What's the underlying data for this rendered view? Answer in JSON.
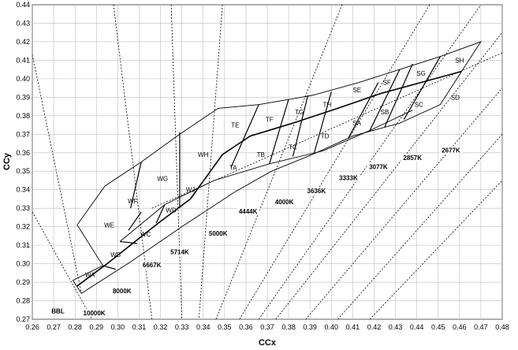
{
  "chart_data": {
    "type": "scatter",
    "xlabel": "CCx",
    "ylabel": "CCy",
    "xlim": [
      0.26,
      0.48
    ],
    "ylim": [
      0.27,
      0.44
    ],
    "xticks": [
      "0.26",
      "0.27",
      "0.28",
      "0.29",
      "0.30",
      "0.31",
      "0.32",
      "0.33",
      "0.34",
      "0.35",
      "0.36",
      "0.37",
      "0.38",
      "0.39",
      "0.40",
      "0.41",
      "0.42",
      "0.43",
      "0.44",
      "0.45",
      "0.46",
      "0.47",
      "0.48"
    ],
    "yticks": [
      "0.27",
      "0.28",
      "0.29",
      "0.30",
      "0.31",
      "0.32",
      "0.33",
      "0.34",
      "0.35",
      "0.36",
      "0.37",
      "0.38",
      "0.39",
      "0.40",
      "0.41",
      "0.42",
      "0.43",
      "0.44"
    ],
    "outer_boundary": [
      [
        0.279,
        0.291
      ],
      [
        0.283,
        0.284
      ],
      [
        0.306,
        0.301
      ],
      [
        0.33,
        0.32
      ],
      [
        0.355,
        0.339
      ],
      [
        0.372,
        0.35
      ],
      [
        0.391,
        0.359
      ],
      [
        0.41,
        0.369
      ],
      [
        0.432,
        0.376
      ],
      [
        0.451,
        0.386
      ],
      [
        0.461,
        0.404
      ],
      [
        0.47,
        0.42
      ],
      [
        0.451,
        0.412
      ],
      [
        0.432,
        0.405
      ],
      [
        0.413,
        0.398
      ],
      [
        0.391,
        0.391
      ],
      [
        0.366,
        0.386
      ],
      [
        0.347,
        0.384
      ],
      [
        0.329,
        0.37
      ],
      [
        0.311,
        0.355
      ],
      [
        0.294,
        0.342
      ],
      [
        0.281,
        0.321
      ],
      [
        0.293,
        0.299
      ]
    ],
    "center_line": [
      [
        0.281,
        0.288
      ],
      [
        0.295,
        0.3
      ],
      [
        0.307,
        0.311
      ],
      [
        0.319,
        0.322
      ],
      [
        0.334,
        0.335
      ],
      [
        0.349,
        0.359
      ],
      [
        0.362,
        0.369
      ],
      [
        0.382,
        0.376
      ],
      [
        0.403,
        0.384
      ],
      [
        0.423,
        0.392
      ],
      [
        0.442,
        0.398
      ],
      [
        0.461,
        0.404
      ]
    ],
    "segment_lines": [
      [
        [
          0.293,
          0.299
        ],
        [
          0.299,
          0.297
        ]
      ],
      [
        [
          0.301,
          0.312
        ],
        [
          0.309,
          0.311
        ]
      ],
      [
        [
          0.305,
          0.318
        ],
        [
          0.311,
          0.328
        ]
      ],
      [
        [
          0.306,
          0.33
        ],
        [
          0.311,
          0.355
        ]
      ],
      [
        [
          0.318,
          0.322
        ],
        [
          0.322,
          0.332
        ]
      ],
      [
        [
          0.329,
          0.33
        ],
        [
          0.329,
          0.371
        ]
      ],
      [
        [
          0.353,
          0.352
        ],
        [
          0.366,
          0.386
        ]
      ],
      [
        [
          0.371,
          0.354
        ],
        [
          0.38,
          0.389
        ]
      ],
      [
        [
          0.382,
          0.358
        ],
        [
          0.389,
          0.391
        ]
      ],
      [
        [
          0.392,
          0.36
        ],
        [
          0.4,
          0.393
        ]
      ],
      [
        [
          0.408,
          0.368
        ],
        [
          0.422,
          0.398
        ]
      ],
      [
        [
          0.418,
          0.372
        ],
        [
          0.432,
          0.405
        ]
      ],
      [
        [
          0.425,
          0.374
        ],
        [
          0.438,
          0.408
        ]
      ],
      [
        [
          0.434,
          0.378
        ],
        [
          0.451,
          0.412
        ]
      ]
    ],
    "inner_boundary": [
      [
        0.301,
        0.312
      ],
      [
        0.322,
        0.332
      ],
      [
        0.345,
        0.345
      ],
      [
        0.371,
        0.354
      ],
      [
        0.396,
        0.361
      ],
      [
        0.418,
        0.372
      ],
      [
        0.438,
        0.383
      ]
    ],
    "dotted_lines": [
      [
        [
          0.26,
          0.413
        ],
        [
          0.283,
          0.284
        ]
      ],
      [
        [
          0.26,
          0.328
        ],
        [
          0.288,
          0.27
        ]
      ],
      [
        [
          0.298,
          0.44
        ],
        [
          0.316,
          0.27
        ]
      ],
      [
        [
          0.325,
          0.44
        ],
        [
          0.33,
          0.27
        ]
      ],
      [
        [
          0.349,
          0.44
        ],
        [
          0.338,
          0.27
        ]
      ],
      [
        [
          0.346,
          0.27
        ],
        [
          0.405,
          0.44
        ]
      ],
      [
        [
          0.357,
          0.27
        ],
        [
          0.446,
          0.44
        ]
      ],
      [
        [
          0.366,
          0.27
        ],
        [
          0.47,
          0.44
        ]
      ],
      [
        [
          0.374,
          0.27
        ],
        [
          0.48,
          0.425
        ]
      ],
      [
        [
          0.388,
          0.27
        ],
        [
          0.48,
          0.395
        ]
      ],
      [
        [
          0.403,
          0.27
        ],
        [
          0.48,
          0.37
        ]
      ],
      [
        [
          0.418,
          0.27
        ],
        [
          0.48,
          0.345
        ]
      ],
      [
        [
          0.316,
          0.33
        ],
        [
          0.48,
          0.414
        ]
      ]
    ],
    "regions": [
      {
        "label": "WA",
        "x": 0.287,
        "y": 0.294
      },
      {
        "label": "WB",
        "x": 0.299,
        "y": 0.305
      },
      {
        "label": "WC",
        "x": 0.313,
        "y": 0.316
      },
      {
        "label": "WD",
        "x": 0.325,
        "y": 0.329
      },
      {
        "label": "WE",
        "x": 0.296,
        "y": 0.321
      },
      {
        "label": "WF",
        "x": 0.307,
        "y": 0.334
      },
      {
        "label": "WG",
        "x": 0.321,
        "y": 0.346
      },
      {
        "label": "WH",
        "x": 0.34,
        "y": 0.359
      },
      {
        "label": "WJ",
        "x": 0.334,
        "y": 0.34
      },
      {
        "label": "TA",
        "x": 0.354,
        "y": 0.352
      },
      {
        "label": "TB",
        "x": 0.367,
        "y": 0.359
      },
      {
        "label": "TC",
        "x": 0.382,
        "y": 0.363
      },
      {
        "label": "TD",
        "x": 0.397,
        "y": 0.369
      },
      {
        "label": "TE",
        "x": 0.355,
        "y": 0.375
      },
      {
        "label": "TF",
        "x": 0.371,
        "y": 0.378
      },
      {
        "label": "TG",
        "x": 0.385,
        "y": 0.382
      },
      {
        "label": "TH",
        "x": 0.398,
        "y": 0.386
      },
      {
        "label": "SA",
        "x": 0.412,
        "y": 0.376
      },
      {
        "label": "SB",
        "x": 0.425,
        "y": 0.382
      },
      {
        "label": "SC",
        "x": 0.441,
        "y": 0.386
      },
      {
        "label": "SD",
        "x": 0.458,
        "y": 0.39
      },
      {
        "label": "SE",
        "x": 0.412,
        "y": 0.394
      },
      {
        "label": "SF",
        "x": 0.426,
        "y": 0.398
      },
      {
        "label": "SG",
        "x": 0.442,
        "y": 0.403
      },
      {
        "label": "SH",
        "x": 0.46,
        "y": 0.41
      }
    ],
    "cct_labels": [
      {
        "label": "BBL",
        "x": 0.272,
        "y": 0.274
      },
      {
        "label": "10000K",
        "x": 0.289,
        "y": 0.273
      },
      {
        "label": "8000K",
        "x": 0.302,
        "y": 0.285
      },
      {
        "label": "6667K",
        "x": 0.316,
        "y": 0.299
      },
      {
        "label": "5714K",
        "x": 0.329,
        "y": 0.306
      },
      {
        "label": "5000K",
        "x": 0.347,
        "y": 0.316
      },
      {
        "label": "4444K",
        "x": 0.361,
        "y": 0.328
      },
      {
        "label": "4000K",
        "x": 0.378,
        "y": 0.333
      },
      {
        "label": "3636K",
        "x": 0.393,
        "y": 0.339
      },
      {
        "label": "3333K",
        "x": 0.408,
        "y": 0.346
      },
      {
        "label": "3077K",
        "x": 0.422,
        "y": 0.352
      },
      {
        "label": "2857K",
        "x": 0.438,
        "y": 0.357
      },
      {
        "label": "2677K",
        "x": 0.456,
        "y": 0.361
      }
    ]
  }
}
